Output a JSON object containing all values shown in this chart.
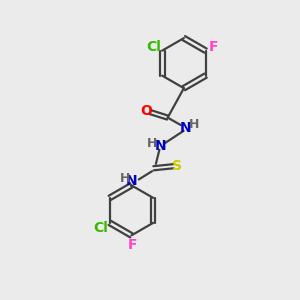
{
  "bg_color": "#ebebeb",
  "bond_color": "#404040",
  "atoms": {
    "O": {
      "color": "#ff0000"
    },
    "N": {
      "color": "#0000cc"
    },
    "S": {
      "color": "#cccc00"
    },
    "Cl": {
      "color": "#33bb00"
    },
    "F": {
      "color": "#ff44cc"
    },
    "H": {
      "color": "#666666"
    }
  },
  "figsize": [
    3.0,
    3.0
  ],
  "dpi": 100
}
